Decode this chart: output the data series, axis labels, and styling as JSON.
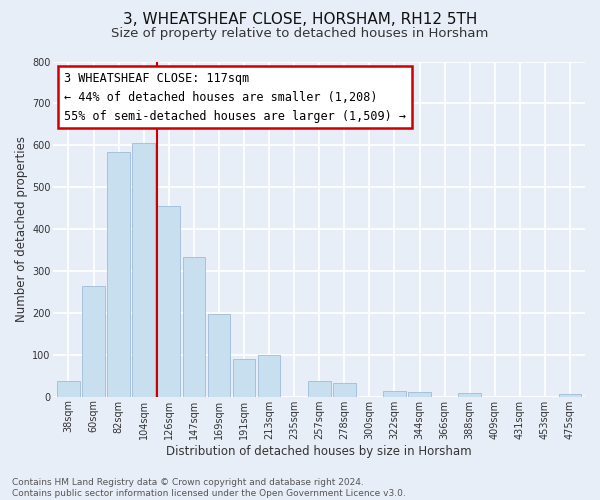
{
  "title": "3, WHEATSHEAF CLOSE, HORSHAM, RH12 5TH",
  "subtitle": "Size of property relative to detached houses in Horsham",
  "xlabel": "Distribution of detached houses by size in Horsham",
  "ylabel": "Number of detached properties",
  "bar_labels": [
    "38sqm",
    "60sqm",
    "82sqm",
    "104sqm",
    "126sqm",
    "147sqm",
    "169sqm",
    "191sqm",
    "213sqm",
    "235sqm",
    "257sqm",
    "278sqm",
    "300sqm",
    "322sqm",
    "344sqm",
    "366sqm",
    "388sqm",
    "409sqm",
    "431sqm",
    "453sqm",
    "475sqm"
  ],
  "bar_values": [
    38,
    265,
    585,
    605,
    455,
    333,
    197,
    91,
    100,
    0,
    38,
    32,
    0,
    14,
    10,
    0,
    8,
    0,
    0,
    0,
    7
  ],
  "bar_color": "#c8dff0",
  "bar_edge_color": "#a0bcd8",
  "highlight_bar_index": 4,
  "highlight_color": "#cc0000",
  "ylim": [
    0,
    800
  ],
  "yticks": [
    0,
    100,
    200,
    300,
    400,
    500,
    600,
    700,
    800
  ],
  "annotation_line1": "3 WHEATSHEAF CLOSE: 117sqm",
  "annotation_line2": "← 44% of detached houses are smaller (1,208)",
  "annotation_line3": "55% of semi-detached houses are larger (1,509) →",
  "footer_text": "Contains HM Land Registry data © Crown copyright and database right 2024.\nContains public sector information licensed under the Open Government Licence v3.0.",
  "background_color": "#e8eef8",
  "plot_bg_color": "#e8eef8",
  "grid_color": "#ffffff",
  "title_fontsize": 11,
  "subtitle_fontsize": 9.5,
  "axis_label_fontsize": 8.5,
  "tick_fontsize": 7,
  "footer_fontsize": 6.5,
  "annotation_fontsize": 8.5
}
